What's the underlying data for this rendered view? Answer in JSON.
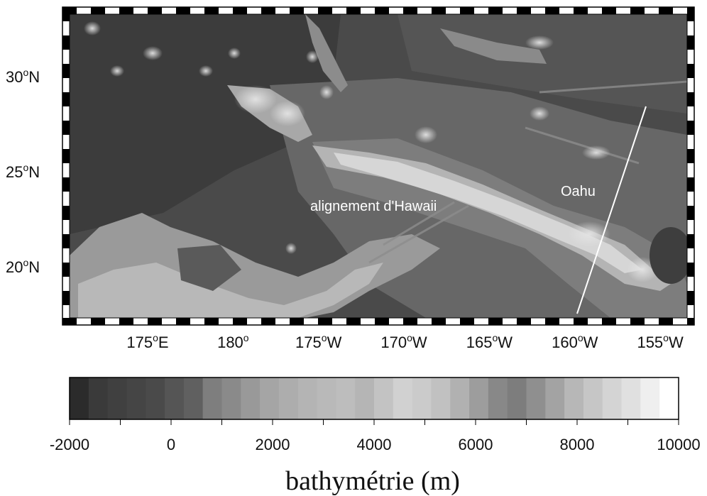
{
  "map": {
    "lat_labels": [
      {
        "value": 30,
        "text": "30",
        "suffix": "N"
      },
      {
        "value": 25,
        "text": "25",
        "suffix": "N"
      },
      {
        "value": 20,
        "text": "20",
        "suffix": "N"
      }
    ],
    "lon_labels": [
      {
        "value": 175,
        "text": "175",
        "suffix": "E"
      },
      {
        "value": 180,
        "text": "180",
        "suffix": ""
      },
      {
        "value": -175,
        "text": "175",
        "suffix": "W"
      },
      {
        "value": -170,
        "text": "170",
        "suffix": "W"
      },
      {
        "value": -165,
        "text": "165",
        "suffix": "W"
      },
      {
        "value": -160,
        "text": "160",
        "suffix": "W"
      },
      {
        "value": -155,
        "text": "155",
        "suffix": "W"
      }
    ],
    "annotations": {
      "chain": "alignement d'Hawaii",
      "island": "Oahu"
    },
    "colors": {
      "deep": "#3a3a3a",
      "shallow": "#d8d8d8",
      "frame_dark": "#000000",
      "frame_light": "#ffffff"
    }
  },
  "colorbar": {
    "ticks": [
      "-2000",
      "0",
      "2000",
      "4000",
      "6000",
      "8000",
      "10000"
    ],
    "label": "bathymétrie (m)",
    "range": [
      -2000,
      10000
    ],
    "greys": [
      "#2b2b2b",
      "#3a3a3a",
      "#404040",
      "#454545",
      "#4a4a4a",
      "#555555",
      "#606060",
      "#7e7e7e",
      "#8a8a8a",
      "#999999",
      "#a5a5a5",
      "#adadad",
      "#b4b4b4",
      "#b9b9b9",
      "#bdbdbd",
      "#b5b5b5",
      "#c3c3c3",
      "#d1d1d1",
      "#cbcbcb",
      "#c1c1c1",
      "#b1b1b1",
      "#9d9d9d",
      "#888888",
      "#7d7d7d",
      "#8f8f8f",
      "#a3a3a3",
      "#b7b7b7",
      "#c6c6c6",
      "#d4d4d4",
      "#e0e0e0",
      "#efefef",
      "#ffffff"
    ]
  }
}
